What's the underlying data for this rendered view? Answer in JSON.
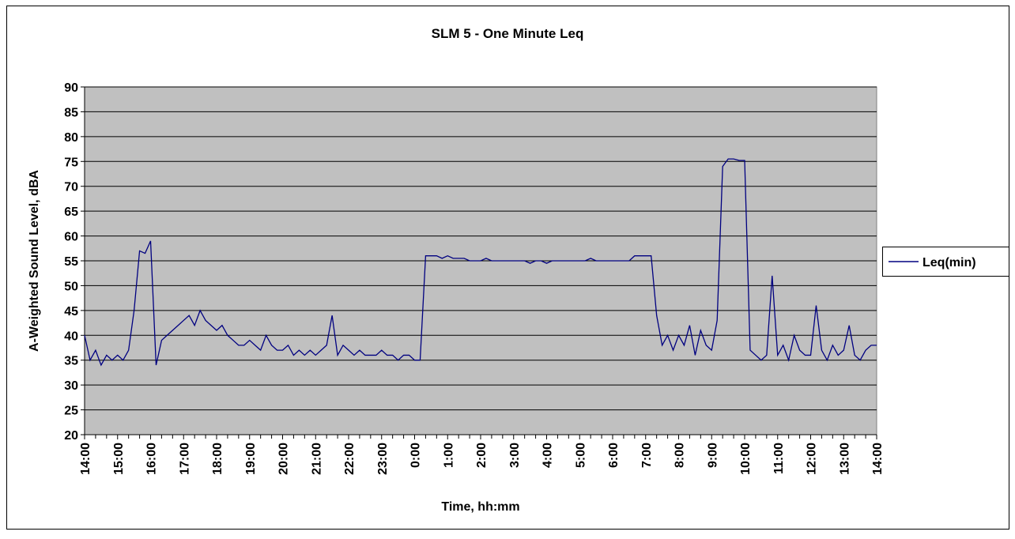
{
  "chart_data": {
    "type": "line",
    "title": "SLM 5 - One Minute Leq",
    "x_label": "Time, hh:mm",
    "y_label": "A-Weighted Sound Level, dBA",
    "categories": [
      "14:00",
      null,
      null,
      null,
      null,
      null,
      "15:00",
      null,
      null,
      null,
      null,
      null,
      "16:00",
      null,
      null,
      null,
      null,
      null,
      "17:00",
      null,
      null,
      null,
      null,
      null,
      "18:00",
      null,
      null,
      null,
      null,
      null,
      "19:00",
      null,
      null,
      null,
      null,
      null,
      "20:00",
      null,
      null,
      null,
      null,
      null,
      "21:00",
      null,
      null,
      null,
      null,
      null,
      "22:00",
      null,
      null,
      null,
      null,
      null,
      "23:00",
      null,
      null,
      null,
      null,
      null,
      "0:00",
      null,
      null,
      null,
      null,
      null,
      "1:00",
      null,
      null,
      null,
      null,
      null,
      "2:00",
      null,
      null,
      null,
      null,
      null,
      "3:00",
      null,
      null,
      null,
      null,
      null,
      "4:00",
      null,
      null,
      null,
      null,
      null,
      "5:00",
      null,
      null,
      null,
      null,
      null,
      "6:00",
      null,
      null,
      null,
      null,
      null,
      "7:00",
      null,
      null,
      null,
      null,
      null,
      "8:00",
      null,
      null,
      null,
      null,
      null,
      "9:00",
      null,
      null,
      null,
      null,
      null,
      "10:00",
      null,
      null,
      null,
      null,
      null,
      "11:00",
      null,
      null,
      null,
      null,
      null,
      "12:00",
      null,
      null,
      null,
      null,
      null,
      "13:00",
      null,
      null,
      null,
      null,
      null,
      "14:00"
    ],
    "series": [
      {
        "name": "Leq(min)",
        "color": "#000080",
        "values": [
          40,
          35,
          37,
          34,
          36,
          35,
          36,
          35,
          37,
          45,
          57,
          56.5,
          59,
          34,
          39,
          40,
          41,
          42,
          43,
          44,
          42,
          45,
          43,
          42,
          41,
          42,
          40,
          39,
          38,
          38,
          39,
          38,
          37,
          40,
          38,
          37,
          37,
          38,
          36,
          37,
          36,
          37,
          36,
          37,
          38,
          44,
          36,
          38,
          37,
          36,
          37,
          36,
          36,
          36,
          37,
          36,
          36,
          35,
          36,
          36,
          35,
          35,
          56,
          56,
          56,
          55.5,
          56,
          55.5,
          55.5,
          55.5,
          55,
          55,
          55,
          55.5,
          55,
          55,
          55,
          55,
          55,
          55,
          55,
          54.5,
          55,
          55,
          54.5,
          55,
          55,
          55,
          55,
          55,
          55,
          55,
          55.5,
          55,
          55,
          55,
          55,
          55,
          55,
          55,
          56,
          56,
          56,
          56,
          44,
          38,
          40,
          37,
          40,
          38,
          42,
          36,
          41,
          38,
          37,
          43,
          74,
          75.5,
          75.5,
          75.2,
          75.2,
          37,
          36,
          35,
          36,
          52,
          36,
          38,
          35,
          40,
          37,
          36,
          36,
          46,
          37,
          35,
          38,
          36,
          37,
          42,
          36,
          35,
          37,
          38,
          38
        ]
      }
    ],
    "ylim": [
      20,
      90
    ],
    "yticks": [
      20,
      25,
      30,
      35,
      40,
      45,
      50,
      55,
      60,
      65,
      70,
      75,
      80,
      85,
      90
    ],
    "grid": true,
    "legend": "right"
  }
}
